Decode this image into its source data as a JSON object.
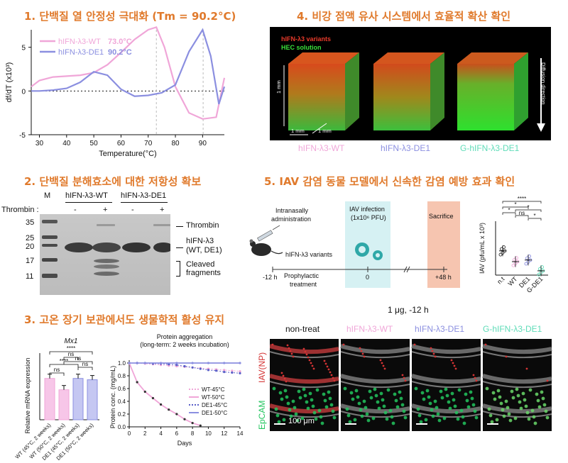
{
  "colors": {
    "accent": "#e07a2c",
    "wt": "#f0a6d8",
    "de1": "#8b8fe0",
    "gde1": "#5fdcb8",
    "green_cells": "#22c55e",
    "red_np": "#d43434"
  },
  "panel1": {
    "title": "1. 단백질 열 안정성 극대화 (Tm = 90.2°C)",
    "legend": [
      {
        "name": "hIFN-λ3-WT",
        "tm": "73.0°C"
      },
      {
        "name": "hIFN-λ3-DE1",
        "tm": "90.2°C"
      }
    ],
    "ylabel": "df/dT (x10³)",
    "xlabel": "Temperature(°C)",
    "yticks": [
      "5",
      "0",
      "-5"
    ],
    "xticks": [
      "30",
      "40",
      "50",
      "60",
      "70",
      "80",
      "90"
    ]
  },
  "panel2": {
    "title": "2. 단백질 분해효소에 대한 저항성 확보",
    "lanes_header": {
      "m": "M",
      "wt": "hIFN-λ3-WT",
      "de1": "hIFN-λ3-DE1"
    },
    "thrombin_label": "Thrombin :",
    "thrombin_signs": [
      "-",
      "+",
      "-",
      "+"
    ],
    "markers": [
      "35",
      "25",
      "20",
      "17",
      "11"
    ],
    "band_labels": {
      "thrombin": "Thrombin",
      "hifn": "hIFN-λ3",
      "hifn_sub": "(WT, DE1)",
      "cleaved1": "Cleaved",
      "cleaved2": "fragments"
    }
  },
  "panel3": {
    "title": "3. 고온 장기 보관에서도 생물학적 활성 유지",
    "bar_title": "Mx1",
    "bar_ylabel": "Relative mRNA expression",
    "bar_cats": [
      "WT (45°C, 2 weeks)",
      "WT (50°C, 2 weeks)",
      "DE1 (45°C, 2 weeks)",
      "DE1 (50°C, 2 weeks)"
    ],
    "bar_cat_lines": [
      [
        "WT",
        "(45°C, 2 weeks)"
      ],
      [
        "WT",
        "(50°C, 2 weeks)"
      ],
      [
        "DE1",
        "(45°C, 2 weeks)"
      ],
      [
        "DE1",
        "(50°C, 2 weeks)"
      ]
    ],
    "sig_labels": [
      "ns",
      "****",
      "ns",
      "ns",
      "ns",
      "****"
    ],
    "line_title1": "Protein aggregation",
    "line_title2": "(long-term: 2 weeks incubation)",
    "line_ylabel": "Protein conc. (mg/mL)",
    "line_xlabel": "Days",
    "line_legend": [
      "WT-45°C",
      "WT-50°C",
      "DE1-45°C",
      "DE1-50°C"
    ]
  },
  "panel4": {
    "title": "4. 비강 점액 유사 시스템에서 효율적 확산 확인",
    "label_red": "hIFN-λ3 variants",
    "label_green": "HEC solution",
    "dim_label": "1 mm",
    "diffusion": "Diffusion direction",
    "cube_labels": [
      "hIFN-λ3-WT",
      "hIFN-λ3-DE1",
      "G-hIFN-λ3-DE1"
    ]
  },
  "panel5": {
    "title": "5. IAV 감염 동물 모델에서 신속한 감염 예방 효과 확인",
    "admin": [
      "Intranasally",
      "administration"
    ],
    "variants": "hIFN-λ3 variants",
    "infection": [
      "IAV infection",
      "(1x10⁶ PFU)"
    ],
    "sacrifice": "Sacrifice",
    "timeline": [
      "-12 h",
      "0",
      "+48 h"
    ],
    "prophylactic": [
      "Prophylactic",
      "treatment"
    ],
    "iav_ylabel": "IAV (pfu/mL x 10³)",
    "iav_cats": [
      "n.t",
      "WT",
      "DE1",
      "G-DE1"
    ],
    "iav_sig": [
      "****",
      "*",
      "*",
      "ns",
      "*",
      "*"
    ]
  },
  "panel6": {
    "dose": "1 μg, -12 h",
    "col_labels": [
      "non-treat",
      "hIFN-λ3-WT",
      "hIFN-λ3-DE1",
      "G-hIFN-λ3-DE1"
    ],
    "row_labels": [
      "IAV(NP)",
      "EpCAM"
    ],
    "scale": "100 μm"
  },
  "chart_data": [
    {
      "type": "line",
      "title": "",
      "xlabel": "Temperature(°C)",
      "ylabel": "df/dT (x10³)",
      "xlim": [
        27,
        98
      ],
      "ylim": [
        -5,
        7
      ],
      "series": [
        {
          "name": "hIFN-λ3-WT",
          "x": [
            27,
            30,
            35,
            40,
            45,
            50,
            55,
            60,
            65,
            70,
            73,
            76,
            80,
            85,
            90,
            95,
            98
          ],
          "y": [
            0.5,
            1.2,
            1.6,
            1.7,
            1.8,
            2.1,
            3.0,
            4.4,
            5.9,
            7.0,
            7.3,
            5.0,
            0.5,
            -2.5,
            -3.2,
            -3.0,
            1.5
          ]
        },
        {
          "name": "hIFN-λ3-DE1",
          "x": [
            27,
            30,
            35,
            40,
            45,
            50,
            55,
            60,
            65,
            70,
            75,
            80,
            85,
            90,
            93,
            96,
            98
          ],
          "y": [
            0.0,
            0.0,
            0.1,
            0.3,
            1.0,
            2.2,
            1.8,
            0.2,
            -0.6,
            -0.5,
            -0.2,
            0.7,
            4.5,
            7.0,
            4.0,
            -1.5,
            0.5
          ]
        }
      ]
    },
    {
      "type": "bar",
      "title": "Mx1",
      "ylabel": "Relative mRNA expression",
      "categories": [
        "WT (45°C, 2 weeks)",
        "WT (50°C, 2 weeks)",
        "DE1 (45°C, 2 weeks)",
        "DE1 (50°C, 2 weeks)"
      ],
      "values": [
        62,
        45,
        62,
        60
      ],
      "ylim": [
        0,
        100
      ]
    },
    {
      "type": "line",
      "title": "Protein aggregation",
      "xlabel": "Days",
      "ylabel": "Protein conc. (mg/mL)",
      "xlim": [
        0,
        14
      ],
      "ylim": [
        0,
        1.0
      ],
      "xticks": [
        0,
        2,
        4,
        6,
        8,
        10,
        12,
        14
      ],
      "yticks": [
        0.0,
        0.2,
        0.4,
        0.6,
        0.8,
        1.0
      ],
      "series": [
        {
          "name": "WT-45°C",
          "x": [
            0,
            1,
            2,
            3,
            4,
            5,
            6,
            7,
            8,
            9,
            10,
            11,
            12,
            13,
            14
          ],
          "y": [
            1.0,
            1.0,
            0.99,
            0.98,
            0.97,
            0.96,
            0.95,
            0.94,
            0.93,
            0.92,
            0.91,
            0.9,
            0.89,
            0.88,
            0.87
          ]
        },
        {
          "name": "WT-50°C",
          "x": [
            0,
            1,
            2,
            3,
            4,
            5,
            6,
            7,
            8,
            9
          ],
          "y": [
            1.0,
            0.7,
            0.55,
            0.45,
            0.35,
            0.27,
            0.2,
            0.12,
            0.06,
            0.02
          ]
        },
        {
          "name": "DE1-45°C",
          "x": [
            0,
            1,
            2,
            3,
            4,
            5,
            6,
            7,
            8,
            9,
            10,
            11,
            12,
            13,
            14
          ],
          "y": [
            1.0,
            1.0,
            1.0,
            0.99,
            0.99,
            0.98,
            0.97,
            0.95,
            0.93,
            0.91,
            0.89,
            0.88,
            0.86,
            0.85,
            0.84
          ]
        },
        {
          "name": "DE1-50°C",
          "x": [
            0,
            2,
            4,
            6,
            8,
            10,
            12,
            14
          ],
          "y": [
            1.0,
            1.0,
            1.0,
            1.0,
            1.0,
            1.0,
            1.0,
            1.0
          ]
        }
      ]
    },
    {
      "type": "scatter",
      "title": "",
      "ylabel": "IAV (pfu/mL x 10³)",
      "categories": [
        "n.t",
        "WT",
        "DE1",
        "G-DE1"
      ],
      "values": [
        4.5,
        2.5,
        2.8,
        0.8
      ],
      "ylim": [
        0,
        10
      ]
    }
  ]
}
